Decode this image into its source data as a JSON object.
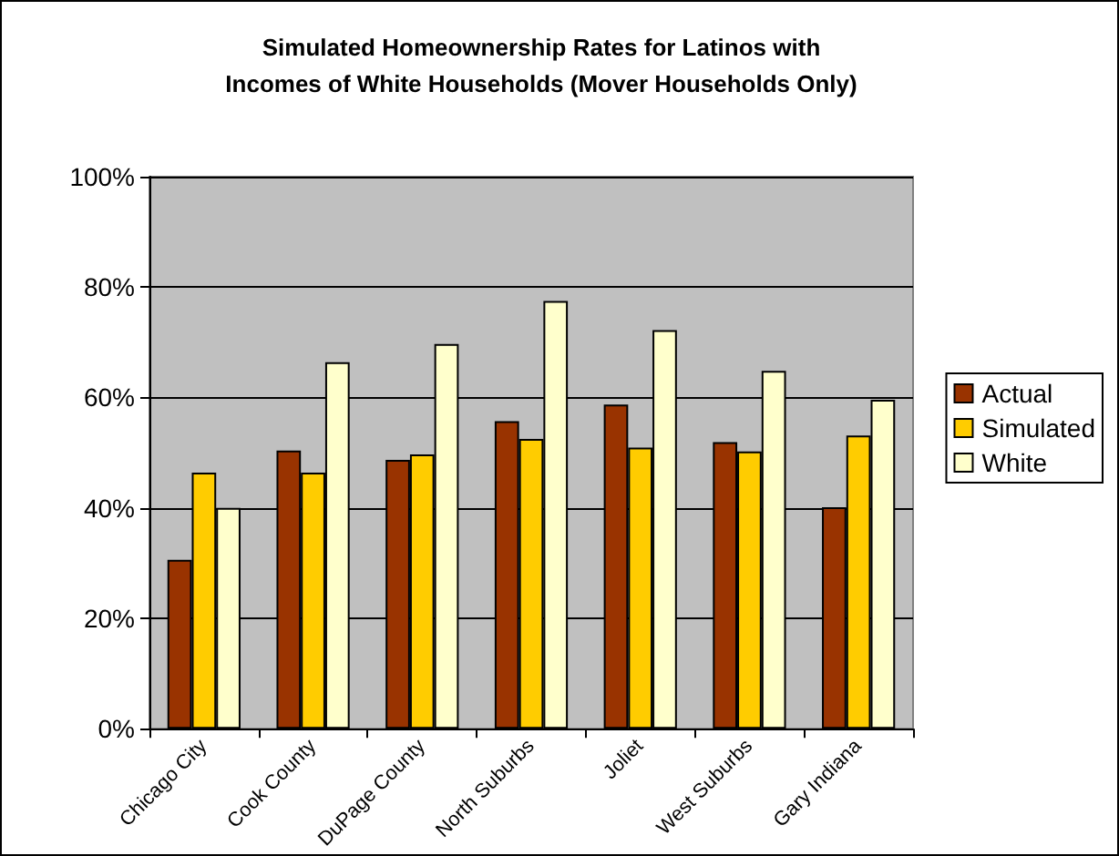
{
  "chart_data": {
    "type": "bar",
    "title": "Simulated Homeownership Rates for Latinos with\nIncomes of White Households (Mover Households Only)",
    "categories": [
      "Chicago City",
      "Cook County",
      "DuPage County",
      "North Suburbs",
      "Joliet",
      "West Suburbs",
      "Gary Indiana"
    ],
    "series": [
      {
        "name": "Actual",
        "color": "#993300",
        "values": [
          30.6,
          50.4,
          48.7,
          55.7,
          58.7,
          51.9,
          40.1
        ]
      },
      {
        "name": "Simulated",
        "color": "#ffcc00",
        "values": [
          46.4,
          46.4,
          49.7,
          52.5,
          50.9,
          50.2,
          53.1
        ]
      },
      {
        "name": "White",
        "color": "#ffffcc",
        "values": [
          40,
          66.4,
          69.7,
          77.5,
          72.2,
          64.8,
          59.6
        ]
      }
    ],
    "ylim": [
      0,
      100
    ],
    "yticks": [
      {
        "value": 0,
        "label": "0%"
      },
      {
        "value": 20,
        "label": "20%"
      },
      {
        "value": 40,
        "label": "40%"
      },
      {
        "value": 60,
        "label": "60%"
      },
      {
        "value": 80,
        "label": "80%"
      },
      {
        "value": 100,
        "label": "100%"
      }
    ],
    "grid": "y",
    "legend": "right"
  }
}
